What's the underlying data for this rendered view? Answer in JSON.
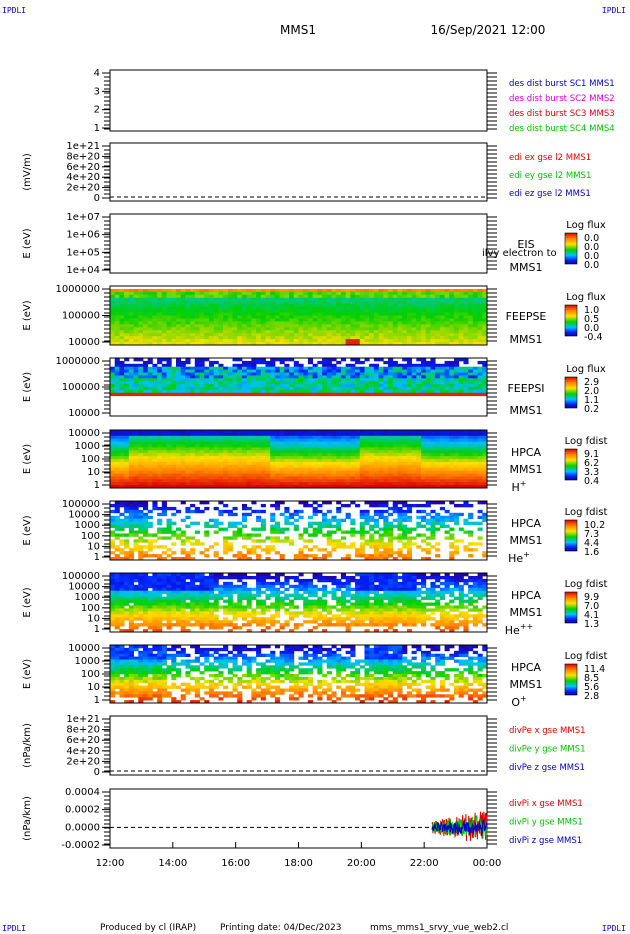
{
  "header": {
    "corner_label": "IPDLI",
    "spacecraft": "MMS1",
    "datetime": "16/Sep/2021 12:00"
  },
  "footer": {
    "produced_by": "Produced by cl (IRAP)",
    "printing_date": "Printing date: 04/Dec/2023",
    "filename": "mms_mms1_srvy_vue_web2.cl"
  },
  "colors": {
    "red": "#e00000",
    "green": "#00c000",
    "blue": "#0000c8",
    "magenta": "#d000d0"
  },
  "chart_data": {
    "type": "heatmap",
    "time_axis": {
      "range": [
        "12:00",
        "00:00"
      ],
      "ticks": [
        "12:00",
        "14:00",
        "16:00",
        "18:00",
        "20:00",
        "22:00",
        "00:00"
      ]
    },
    "panels": [
      {
        "type": "line",
        "ylabel": "",
        "yticks": [
          "4",
          "3",
          "2",
          "1"
        ],
        "series": [
          {
            "name": "des dist burst SC1 MMS1",
            "color": "#0000c8"
          },
          {
            "name": "des dist burst SC2 MMS2",
            "color": "#d000d0"
          },
          {
            "name": "des dist burst SC3 MMS3",
            "color": "#e00000"
          },
          {
            "name": "des dist burst SC4 MMS4",
            "color": "#00c000"
          }
        ]
      },
      {
        "type": "line",
        "ylabel": "(mV/m)",
        "yticks": [
          "1e+21",
          "8e+20",
          "6e+20",
          "4e+20",
          "2e+20",
          "0"
        ],
        "series": [
          {
            "name": "edi ex gse l2 MMS1",
            "color": "#e00000"
          },
          {
            "name": "edi ey gse l2 MMS1",
            "color": "#00c000"
          },
          {
            "name": "edi ez gse l2 MMS1",
            "color": "#0000c8"
          }
        ]
      },
      {
        "type": "heatmap",
        "ylabel": "E (eV)",
        "yticks": [
          "1e+07",
          "1e+06",
          "1e+05",
          "1e+04"
        ],
        "instrument": [
          "EIS",
          "MMS1"
        ],
        "overlay_text": "ilvy electron to",
        "colorbar": {
          "title": "Log flux",
          "ticks": [
            "0.0",
            "0.0",
            "0.0",
            "0.0"
          ]
        }
      },
      {
        "type": "heatmap",
        "ylabel": "E (eV)",
        "yticks": [
          "1000000",
          "100000",
          "10000"
        ],
        "instrument": [
          "FEEPSE",
          "MMS1"
        ],
        "colorbar": {
          "title": "Log flux",
          "ticks": [
            "1.0",
            "0.5",
            "0.0",
            "-0.4"
          ]
        }
      },
      {
        "type": "heatmap",
        "ylabel": "E (eV)",
        "yticks": [
          "1000000",
          "100000",
          "10000"
        ],
        "instrument": [
          "FEEPSI",
          "MMS1"
        ],
        "colorbar": {
          "title": "Log flux",
          "ticks": [
            "2.9",
            "2.0",
            "1.1",
            "0.2"
          ]
        }
      },
      {
        "type": "heatmap",
        "ylabel": "E (eV)",
        "yticks": [
          "10000",
          "1000",
          "100",
          "10",
          "1"
        ],
        "instrument": [
          "HPCA",
          "MMS1"
        ],
        "species": "H",
        "charge": "+",
        "colorbar": {
          "title": "Log fdist",
          "ticks": [
            "9.1",
            "6.2",
            "3.3",
            "0.4"
          ]
        }
      },
      {
        "type": "heatmap",
        "ylabel": "E (eV)",
        "yticks": [
          "100000",
          "10000",
          "1000",
          "100",
          "10",
          "1"
        ],
        "instrument": [
          "HPCA",
          "MMS1"
        ],
        "species": "He",
        "charge": "+",
        "colorbar": {
          "title": "Log fdist",
          "ticks": [
            "10.2",
            "7.3",
            "4.4",
            "1.6"
          ]
        }
      },
      {
        "type": "heatmap",
        "ylabel": "E (eV)",
        "yticks": [
          "100000",
          "10000",
          "1000",
          "100",
          "10",
          "1"
        ],
        "instrument": [
          "HPCA",
          "MMS1"
        ],
        "species": "He",
        "charge": "++",
        "colorbar": {
          "title": "Log fdist",
          "ticks": [
            "9.9",
            "7.0",
            "4.1",
            "1.3"
          ]
        }
      },
      {
        "type": "heatmap",
        "ylabel": "E (eV)",
        "yticks": [
          "10000",
          "1000",
          "100",
          "10",
          "1"
        ],
        "instrument": [
          "HPCA",
          "MMS1"
        ],
        "species": "O",
        "charge": "+",
        "colorbar": {
          "title": "Log fdist",
          "ticks": [
            "11.4",
            "8.5",
            "5.6",
            "2.8"
          ]
        }
      },
      {
        "type": "line",
        "ylabel": "(nPa/km)",
        "yticks": [
          "1e+21",
          "8e+20",
          "6e+20",
          "4e+20",
          "2e+20",
          "0"
        ],
        "series": [
          {
            "name": "divPe x gse MMS1",
            "color": "#e00000"
          },
          {
            "name": "divPe y gse MMS1",
            "color": "#00c000"
          },
          {
            "name": "divPe z gse MMS1",
            "color": "#0000c8"
          }
        ]
      },
      {
        "type": "line",
        "ylabel": "(nPa/km)",
        "yticks": [
          "0.0004",
          "0.0002",
          "0.0000",
          "-0.0002"
        ],
        "series": [
          {
            "name": "divPi x gse MMS1",
            "color": "#e00000"
          },
          {
            "name": "divPi y gse MMS1",
            "color": "#00c000"
          },
          {
            "name": "divPi z gse MMS1",
            "color": "#0000c8"
          }
        ],
        "data_start": "22:15",
        "noise_amplitude": 0.0002
      }
    ]
  }
}
